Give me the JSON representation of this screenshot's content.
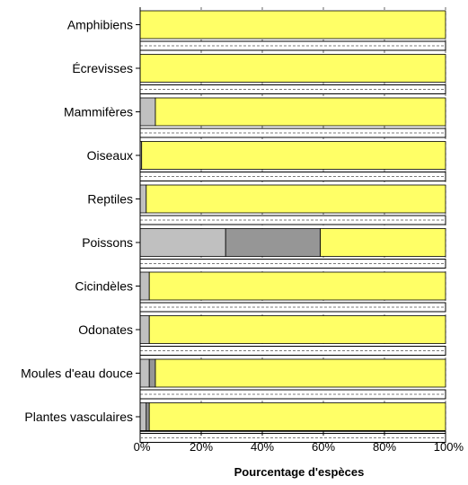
{
  "chart_data": {
    "type": "bar",
    "orientation": "horizontal",
    "stacked": true,
    "xlabel": "Pourcentage d'espèces",
    "ylabel": "",
    "xlim": [
      0,
      100
    ],
    "x_ticks": [
      "0%",
      "20%",
      "40%",
      "60%",
      "80%",
      "100%"
    ],
    "grid": "vertical dashed",
    "categories": [
      "Amphibiens",
      "Écrevisses",
      "Mammifères",
      "Oiseaux",
      "Reptiles",
      "Poissons",
      "Cicindèles",
      "Odonates",
      "Moules d'eau douce",
      "Plantes vasculaires"
    ],
    "series": [
      {
        "color": "#c0c0c0",
        "values": [
          0,
          0,
          5,
          0.5,
          2,
          28,
          3,
          3,
          3,
          2
        ]
      },
      {
        "color": "#969696",
        "values": [
          0,
          0,
          0,
          0,
          0,
          31,
          0,
          0,
          2,
          1
        ]
      },
      {
        "color": "#ffff66",
        "values": [
          100,
          100,
          95,
          99.5,
          98,
          41,
          97,
          97,
          95,
          97
        ]
      }
    ]
  }
}
